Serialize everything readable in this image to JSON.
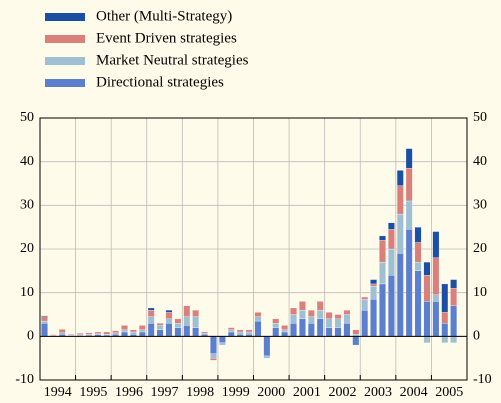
{
  "chart_data": {
    "type": "stacked_bar",
    "x_labels": [
      "1994",
      "1995",
      "1996",
      "1997",
      "1998",
      "1999",
      "2000",
      "2001",
      "2002",
      "2003",
      "2004",
      "2005"
    ],
    "series": [
      {
        "name": "Other (Multi-Strategy)",
        "color": "#1b4fa3",
        "values": [
          0.2,
          0,
          0,
          0,
          0,
          0,
          0,
          0,
          0,
          0,
          0,
          0,
          0.5,
          0,
          0.5,
          0,
          0,
          0,
          0,
          0,
          0,
          0,
          0,
          0,
          0,
          0,
          0,
          0,
          0,
          0,
          0,
          0,
          0,
          0,
          0,
          0,
          0,
          1,
          1,
          1.5,
          3.5,
          4.5,
          3.5,
          3,
          6,
          6.5,
          2,
          0
        ]
      },
      {
        "name": "Event Driven strategies",
        "color": "#d9807a",
        "values": [
          1,
          0.2,
          0.8,
          0.2,
          0.3,
          0.3,
          0.4,
          0.5,
          0.5,
          1,
          0.5,
          1,
          1.5,
          0.5,
          1.5,
          1,
          2.5,
          1.5,
          0.3,
          -0.5,
          0,
          0.5,
          0.5,
          0.5,
          1,
          0,
          1,
          1,
          1.5,
          2,
          1.5,
          2,
          1.5,
          1,
          1,
          1,
          0.5,
          0.5,
          5,
          4.5,
          6.5,
          7.5,
          4.5,
          6,
          8.5,
          2.5,
          4,
          0
        ]
      },
      {
        "name": "Market Neutral strategies",
        "color": "#9fbfd3",
        "values": [
          0.5,
          0.2,
          0.3,
          0.1,
          0.2,
          0.2,
          0.2,
          0.2,
          0.3,
          0.5,
          0.5,
          0.5,
          1.5,
          1,
          1,
          1,
          2,
          2.5,
          0.2,
          -1,
          -0.5,
          0.5,
          0.5,
          0.5,
          1,
          -0.5,
          1,
          0.5,
          2,
          2,
          1.5,
          2,
          2,
          2,
          2,
          0.5,
          2.5,
          3,
          5,
          6,
          9,
          6.5,
          2,
          -1.5,
          1.5,
          -1.5,
          -1.5,
          0
        ]
      },
      {
        "name": "Directional strategies",
        "color": "#5a7fcf",
        "values": [
          3,
          0,
          0.5,
          0.2,
          0.2,
          0.3,
          0.4,
          0.3,
          0.5,
          1,
          0.5,
          1,
          3,
          1.5,
          3,
          2,
          2.5,
          2,
          0.5,
          -4,
          -1.5,
          1,
          0.5,
          0.5,
          3.5,
          -4.5,
          2,
          1,
          3,
          4,
          3,
          4,
          2,
          2,
          3,
          -2,
          6,
          8.5,
          12,
          14,
          19,
          24.5,
          15,
          8,
          8,
          3,
          7,
          0
        ]
      }
    ],
    "ylim": [
      -10,
      50
    ],
    "yticks": [
      -10,
      0,
      10,
      20,
      30,
      40,
      50
    ],
    "grid": true
  }
}
